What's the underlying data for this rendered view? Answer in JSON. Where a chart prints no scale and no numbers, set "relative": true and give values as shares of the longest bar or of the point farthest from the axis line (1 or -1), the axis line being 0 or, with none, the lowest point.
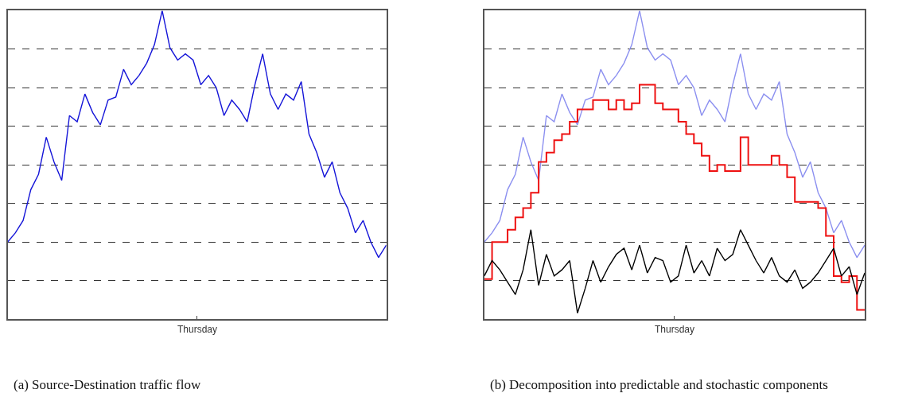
{
  "chart_data": [
    {
      "type": "line",
      "title": "(a) Source-Destination traffic flow",
      "relative": true,
      "annotations": [
        "Thursday"
      ],
      "grid": "y",
      "categories": [
        null,
        null,
        null,
        null,
        null,
        null,
        null,
        null,
        null,
        null,
        null,
        null,
        null,
        null,
        null,
        null,
        null,
        null,
        null,
        null,
        null,
        null,
        null,
        null,
        null,
        null,
        null,
        null,
        null,
        null,
        null,
        null,
        null,
        null,
        null,
        null,
        null,
        null,
        null,
        null,
        null,
        null,
        null,
        null,
        null,
        null,
        null,
        null,
        null,
        null
      ],
      "series": [
        {
          "color": "#1515d8",
          "values": [
            0.25,
            0.28,
            0.32,
            0.42,
            0.47,
            0.59,
            0.51,
            0.45,
            0.66,
            0.64,
            0.73,
            0.67,
            0.63,
            0.71,
            0.72,
            0.81,
            0.76,
            0.79,
            0.83,
            0.89,
            1.0,
            0.88,
            0.84,
            0.86,
            0.84,
            0.76,
            0.79,
            0.75,
            0.66,
            0.71,
            0.68,
            0.64,
            0.76,
            0.86,
            0.73,
            0.68,
            0.73,
            0.71,
            0.77,
            0.6,
            0.54,
            0.46,
            0.51,
            0.41,
            0.36,
            0.28,
            0.32,
            0.25,
            0.2,
            0.24
          ]
        }
      ]
    },
    {
      "type": "line",
      "title": "(b) Decomposition into predictable and stochastic components",
      "relative": true,
      "annotations": [
        "Thursday"
      ],
      "grid": "y",
      "categories": [
        null,
        null,
        null,
        null,
        null,
        null,
        null,
        null,
        null,
        null,
        null,
        null,
        null,
        null,
        null,
        null,
        null,
        null,
        null,
        null,
        null,
        null,
        null,
        null,
        null,
        null,
        null,
        null,
        null,
        null,
        null,
        null,
        null,
        null,
        null,
        null,
        null,
        null,
        null,
        null,
        null,
        null,
        null,
        null,
        null,
        null,
        null,
        null,
        null,
        null
      ],
      "series": [
        {
          "color": "#8c90f0",
          "values": [
            0.25,
            0.28,
            0.32,
            0.42,
            0.47,
            0.59,
            0.51,
            0.45,
            0.66,
            0.64,
            0.73,
            0.67,
            0.63,
            0.71,
            0.72,
            0.81,
            0.76,
            0.79,
            0.83,
            0.89,
            1.0,
            0.88,
            0.84,
            0.86,
            0.84,
            0.76,
            0.79,
            0.75,
            0.66,
            0.71,
            0.68,
            0.64,
            0.76,
            0.86,
            0.73,
            0.68,
            0.73,
            0.71,
            0.77,
            0.6,
            0.54,
            0.46,
            0.51,
            0.41,
            0.36,
            0.28,
            0.32,
            0.25,
            0.2,
            0.24
          ]
        },
        {
          "type": "step",
          "color": "#ee1111",
          "values": [
            0.13,
            0.25,
            0.25,
            0.29,
            0.33,
            0.36,
            0.41,
            0.51,
            0.54,
            0.58,
            0.6,
            0.64,
            0.68,
            0.68,
            0.71,
            0.71,
            0.68,
            0.71,
            0.68,
            0.7,
            0.76,
            0.76,
            0.7,
            0.68,
            0.68,
            0.64,
            0.6,
            0.57,
            0.53,
            0.48,
            0.5,
            0.48,
            0.48,
            0.59,
            0.5,
            0.5,
            0.5,
            0.53,
            0.5,
            0.46,
            0.38,
            0.38,
            0.38,
            0.36,
            0.27,
            0.14,
            0.12,
            0.14,
            0.03,
            0.03
          ]
        },
        {
          "color": "#000000",
          "values": [
            0.14,
            0.19,
            0.16,
            0.12,
            0.08,
            0.16,
            0.29,
            0.11,
            0.21,
            0.14,
            0.16,
            0.19,
            0.02,
            0.1,
            0.19,
            0.12,
            0.17,
            0.21,
            0.23,
            0.16,
            0.24,
            0.15,
            0.2,
            0.19,
            0.12,
            0.14,
            0.24,
            0.15,
            0.19,
            0.14,
            0.23,
            0.19,
            0.21,
            0.29,
            0.24,
            0.19,
            0.15,
            0.2,
            0.14,
            0.12,
            0.16,
            0.1,
            0.12,
            0.15,
            0.19,
            0.23,
            0.14,
            0.17,
            0.08,
            0.15
          ]
        }
      ]
    }
  ]
}
